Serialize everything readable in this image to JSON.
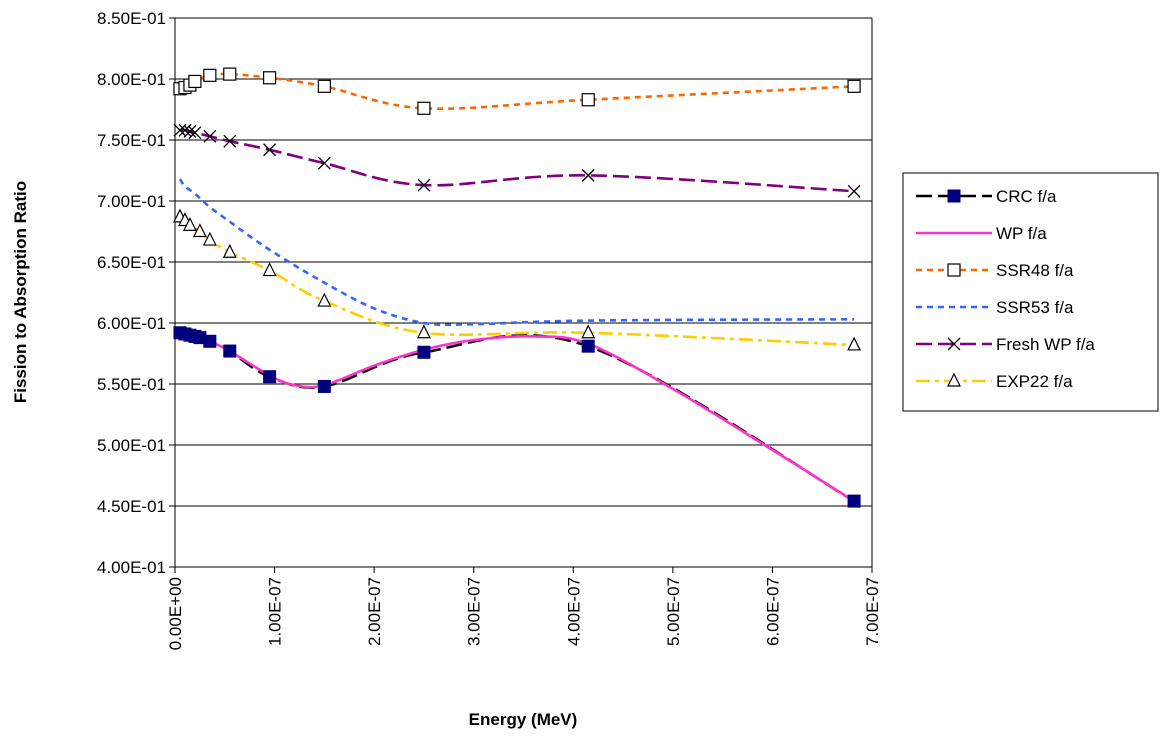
{
  "chart_data": {
    "type": "line",
    "title": "",
    "xlabel": "Energy (MeV)",
    "ylabel": "Fission to Absorption Ratio",
    "xlim": [
      0,
      7e-07
    ],
    "ylim": [
      0.4,
      0.85
    ],
    "x_ticks": [
      0,
      1e-07,
      2e-07,
      3e-07,
      4e-07,
      5e-07,
      6e-07,
      7e-07
    ],
    "x_tick_labels": [
      "0.00E+00",
      "1.00E-07",
      "2.00E-07",
      "3.00E-07",
      "4.00E-07",
      "5.00E-07",
      "6.00E-07",
      "7.00E-07"
    ],
    "y_ticks": [
      0.4,
      0.45,
      0.5,
      0.55,
      0.6,
      0.65,
      0.7,
      0.75,
      0.8,
      0.85
    ],
    "y_tick_labels": [
      "4.00E-01",
      "4.50E-01",
      "5.00E-01",
      "5.50E-01",
      "6.00E-01",
      "6.50E-01",
      "7.00E-01",
      "7.50E-01",
      "8.00E-01",
      "8.50E-01"
    ],
    "grid": "horizontal",
    "legend_position": "right",
    "series": [
      {
        "name": "CRC f/a",
        "color": "#000000",
        "marker": "filled-square",
        "marker_color": "#00007f",
        "dash": "long-dash",
        "x": [
          5e-09,
          1e-08,
          1.5e-08,
          2e-08,
          2.5e-08,
          3.5e-08,
          5.5e-08,
          9.5e-08,
          1.5e-07,
          2.5e-07,
          4.15e-07,
          6.82e-07
        ],
        "y": [
          0.592,
          0.591,
          0.59,
          0.589,
          0.588,
          0.585,
          0.577,
          0.556,
          0.548,
          0.576,
          0.581,
          0.454
        ]
      },
      {
        "name": "WP f/a",
        "color": "#ff33cc",
        "marker": "none",
        "dash": "solid",
        "x": [
          5e-09,
          2e-08,
          3.5e-08,
          5.5e-08,
          9.5e-08,
          1.2e-07,
          1.5e-07,
          2e-07,
          2.5e-07,
          3e-07,
          3.6e-07,
          4.15e-07,
          5e-07,
          6e-07,
          6.82e-07
        ],
        "y": [
          0.592,
          0.589,
          0.585,
          0.577,
          0.557,
          0.549,
          0.549,
          0.565,
          0.578,
          0.586,
          0.589,
          0.583,
          0.546,
          0.496,
          0.454
        ]
      },
      {
        "name": "SSR48 f/a",
        "color": "#ff6600",
        "marker": "open-square",
        "marker_color": "#000000",
        "dash": "short-dash",
        "x": [
          5e-09,
          1e-08,
          1.5e-08,
          2e-08,
          3.5e-08,
          5.5e-08,
          9.5e-08,
          1.5e-07,
          2.5e-07,
          4.15e-07,
          6.82e-07
        ],
        "y": [
          0.792,
          0.793,
          0.795,
          0.798,
          0.803,
          0.804,
          0.801,
          0.794,
          0.776,
          0.783,
          0.794
        ]
      },
      {
        "name": "SSR53 f/a",
        "color": "#3366ff",
        "marker": "none",
        "dash": "short-dash",
        "x": [
          5e-09,
          1e-08,
          2e-08,
          3.5e-08,
          5.5e-08,
          9.5e-08,
          1.5e-07,
          2e-07,
          2.5e-07,
          3e-07,
          4.15e-07,
          6.82e-07
        ],
        "y": [
          0.718,
          0.712,
          0.706,
          0.695,
          0.683,
          0.66,
          0.633,
          0.612,
          0.6,
          0.599,
          0.602,
          0.603
        ]
      },
      {
        "name": "Fresh WP f/a",
        "color": "#800080",
        "marker": "x",
        "marker_color": "#000000",
        "dash": "long-dash",
        "x": [
          5e-09,
          1e-08,
          1.5e-08,
          2e-08,
          3.5e-08,
          5.5e-08,
          9.5e-08,
          1.5e-07,
          2.5e-07,
          4.15e-07,
          6.82e-07
        ],
        "y": [
          0.758,
          0.758,
          0.757,
          0.756,
          0.753,
          0.749,
          0.742,
          0.731,
          0.713,
          0.721,
          0.708
        ]
      },
      {
        "name": "EXP22 f/a",
        "color": "#ffcc00",
        "marker": "open-triangle",
        "marker_color": "#000000",
        "dash": "dash-dot",
        "x": [
          5e-09,
          1e-08,
          1.5e-08,
          2.5e-08,
          3.5e-08,
          5.5e-08,
          9.5e-08,
          1.5e-07,
          2.5e-07,
          4.15e-07,
          6.82e-07
        ],
        "y": [
          0.687,
          0.684,
          0.68,
          0.675,
          0.668,
          0.658,
          0.643,
          0.618,
          0.592,
          0.592,
          0.582
        ]
      }
    ]
  }
}
